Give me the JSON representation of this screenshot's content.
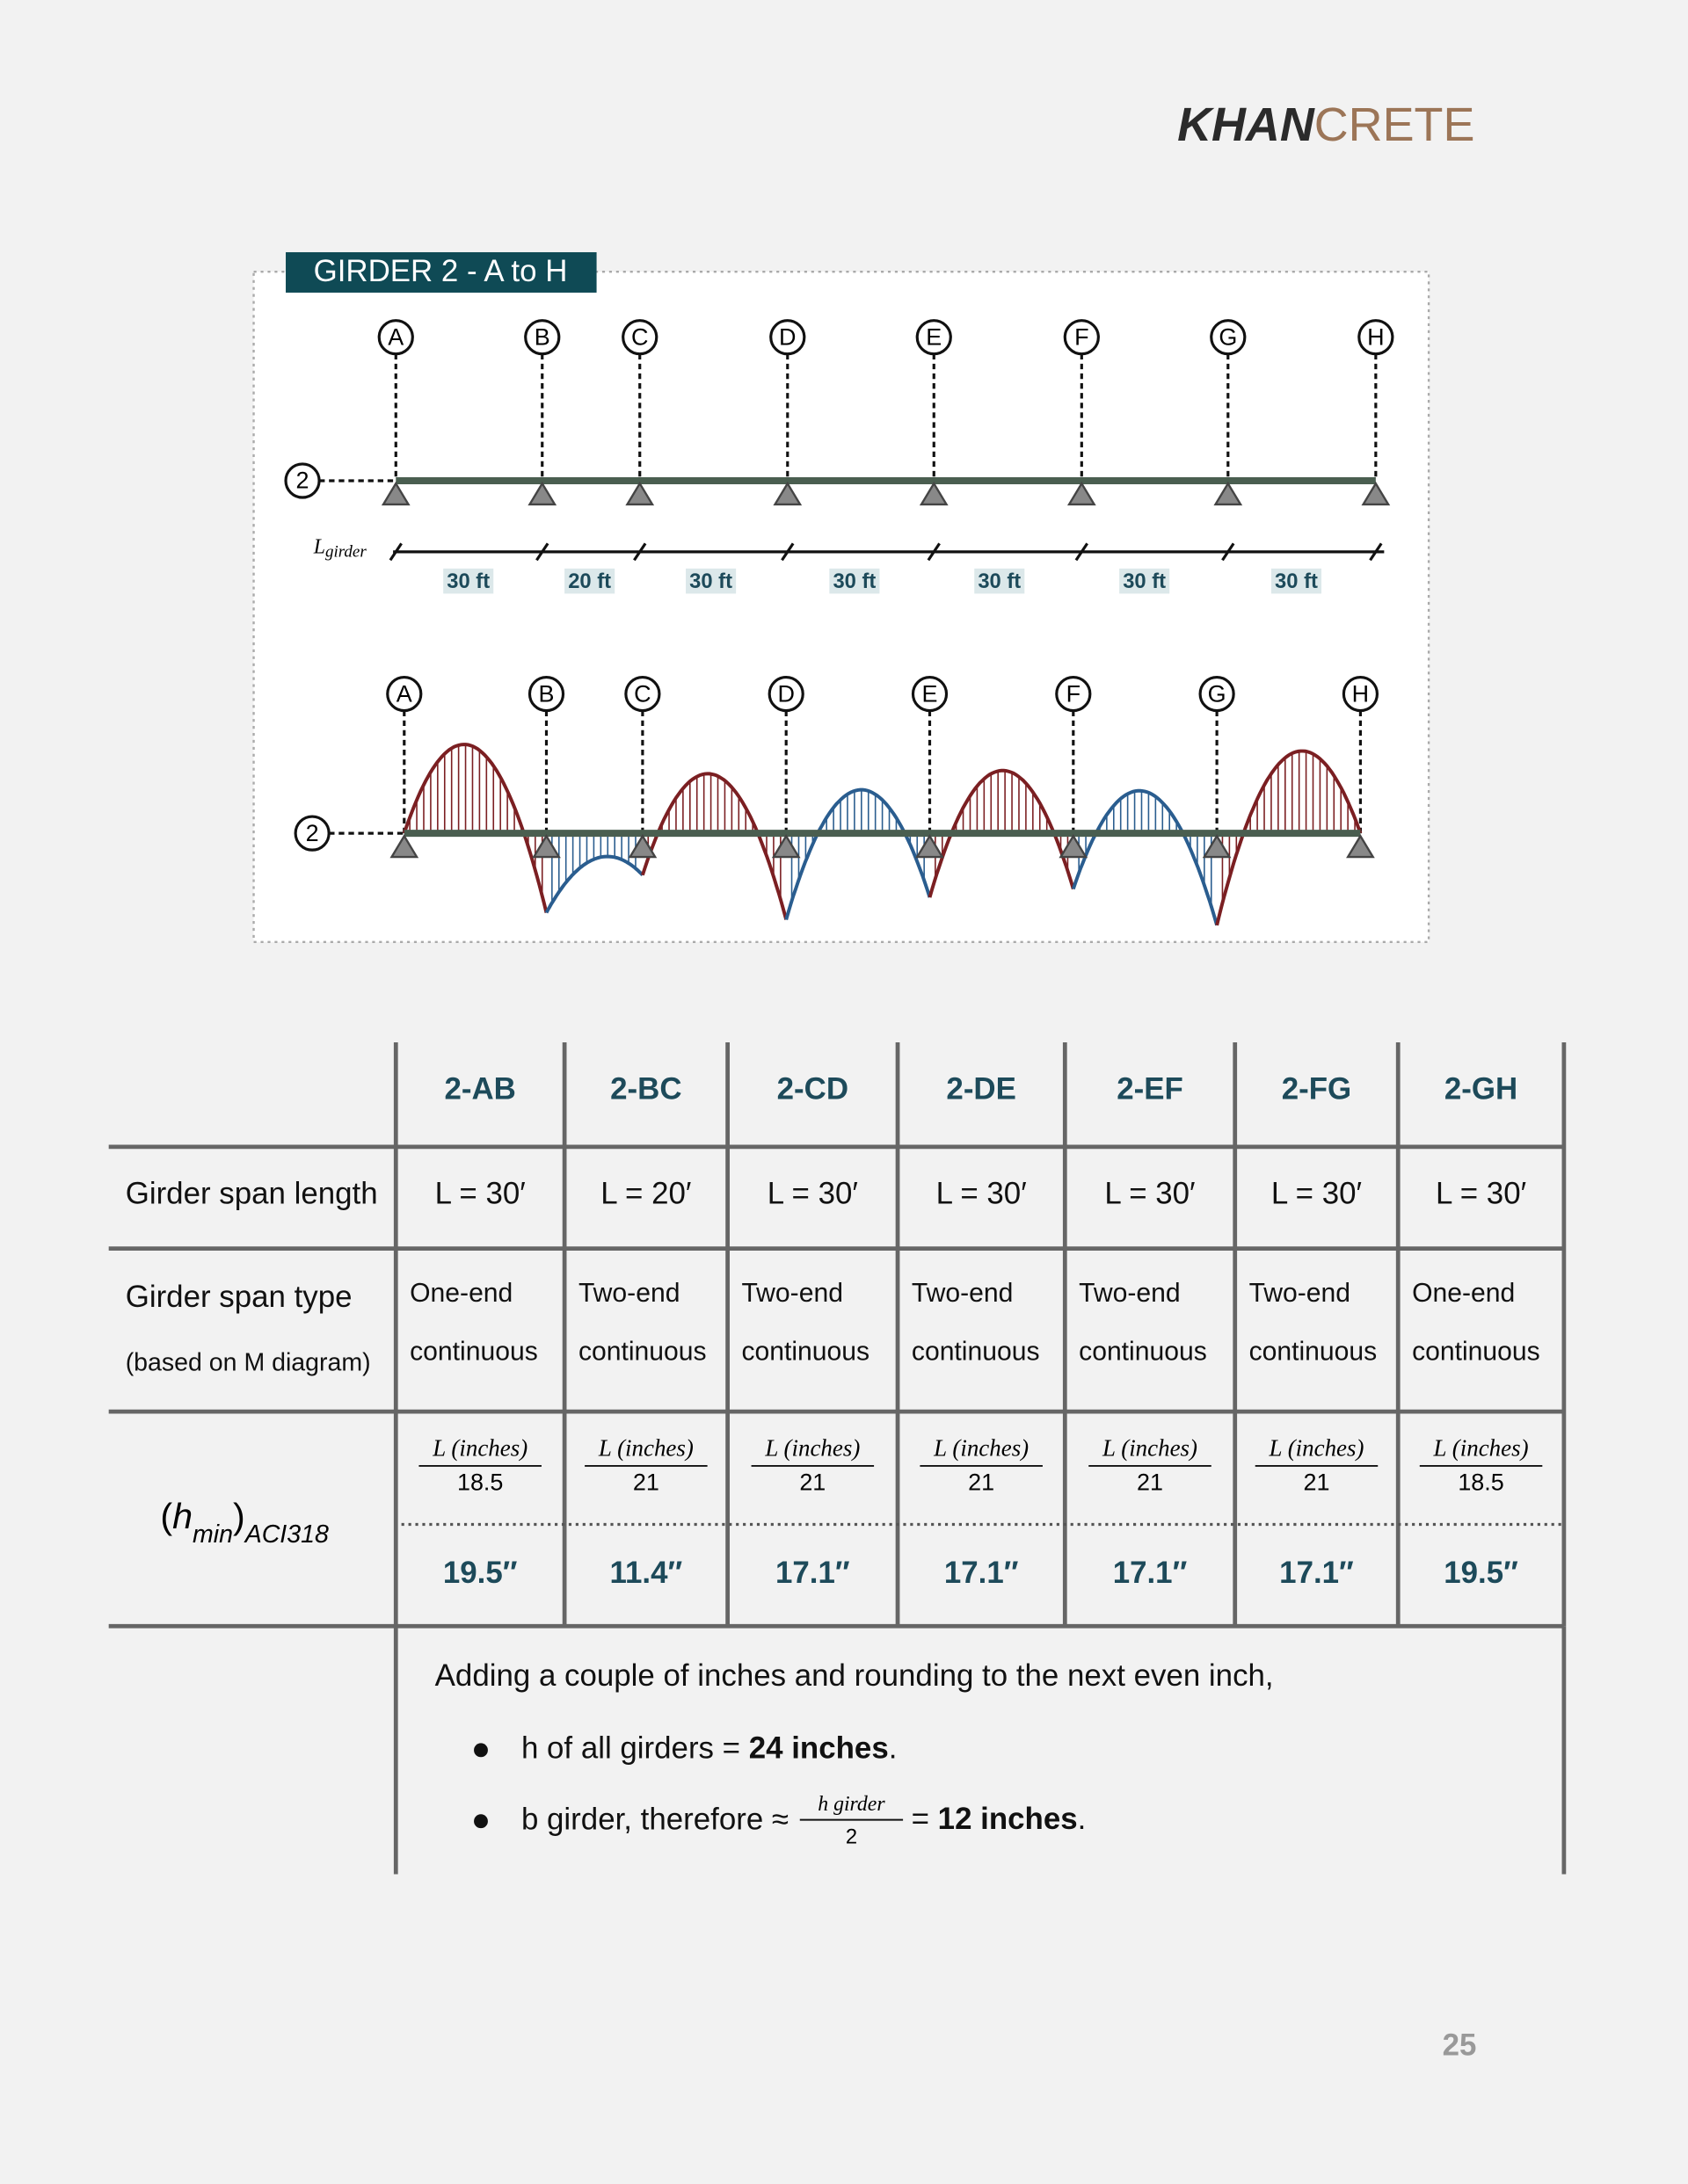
{
  "header": {
    "brand_bold": "KHAN",
    "brand_light": "CRETE"
  },
  "figure": {
    "title": "GIRDER 2 - A to H",
    "gridlines": [
      "A",
      "B",
      "C",
      "D",
      "E",
      "F",
      "G",
      "H"
    ],
    "row": "2",
    "length_label": "L",
    "length_label_sub": "girder",
    "spans": [
      "30 ft",
      "20 ft",
      "30 ft",
      "30 ft",
      "30 ft",
      "30 ft",
      "30 ft"
    ]
  },
  "table": {
    "columns": [
      "2-AB",
      "2-BC",
      "2-CD",
      "2-DE",
      "2-EF",
      "2-FG",
      "2-GH"
    ],
    "span_length": {
      "label": "Girder span length",
      "cells": [
        "L = 30′",
        "L = 20′",
        "L = 30′",
        "L = 30′",
        "L = 30′",
        "L = 30′",
        "L = 30′"
      ]
    },
    "span_type": {
      "label": "Girder span type",
      "sublabel": "(based on M diagram)",
      "cells": [
        [
          "One-end",
          "continuous"
        ],
        [
          "Two-end",
          "continuous"
        ],
        [
          "Two-end",
          "continuous"
        ],
        [
          "Two-end",
          "continuous"
        ],
        [
          "Two-end",
          "continuous"
        ],
        [
          "Two-end",
          "continuous"
        ],
        [
          "One-end",
          "continuous"
        ]
      ]
    },
    "h_min": {
      "label": {
        "open": "(",
        "symbol": "h",
        "sub": "min",
        "close": ")",
        "subscript": "ACI318"
      },
      "formulas": [
        {
          "num": "L (inches)",
          "den": "18.5"
        },
        {
          "num": "L (inches)",
          "den": "21"
        },
        {
          "num": "L (inches)",
          "den": "21"
        },
        {
          "num": "L (inches)",
          "den": "21"
        },
        {
          "num": "L (inches)",
          "den": "21"
        },
        {
          "num": "L (inches)",
          "den": "21"
        },
        {
          "num": "L (inches)",
          "den": "18.5"
        }
      ],
      "cells": [
        "19.5″",
        "11.4″",
        "17.1″",
        "17.1″",
        "17.1″",
        "17.1″",
        "19.5″"
      ]
    }
  },
  "notes": {
    "intro": "Adding a couple of inches and rounding to the next even inch,",
    "bullet_1": {
      "text": "h of all girders = ",
      "bold": "24 inches",
      "end": "."
    },
    "bullet_2": {
      "text": "b girder, therefore ≈",
      "frac_num": "h girder",
      "frac_den": "2",
      "after": "= ",
      "bold": "12 inches",
      "end": "."
    }
  },
  "page_number": "25"
}
